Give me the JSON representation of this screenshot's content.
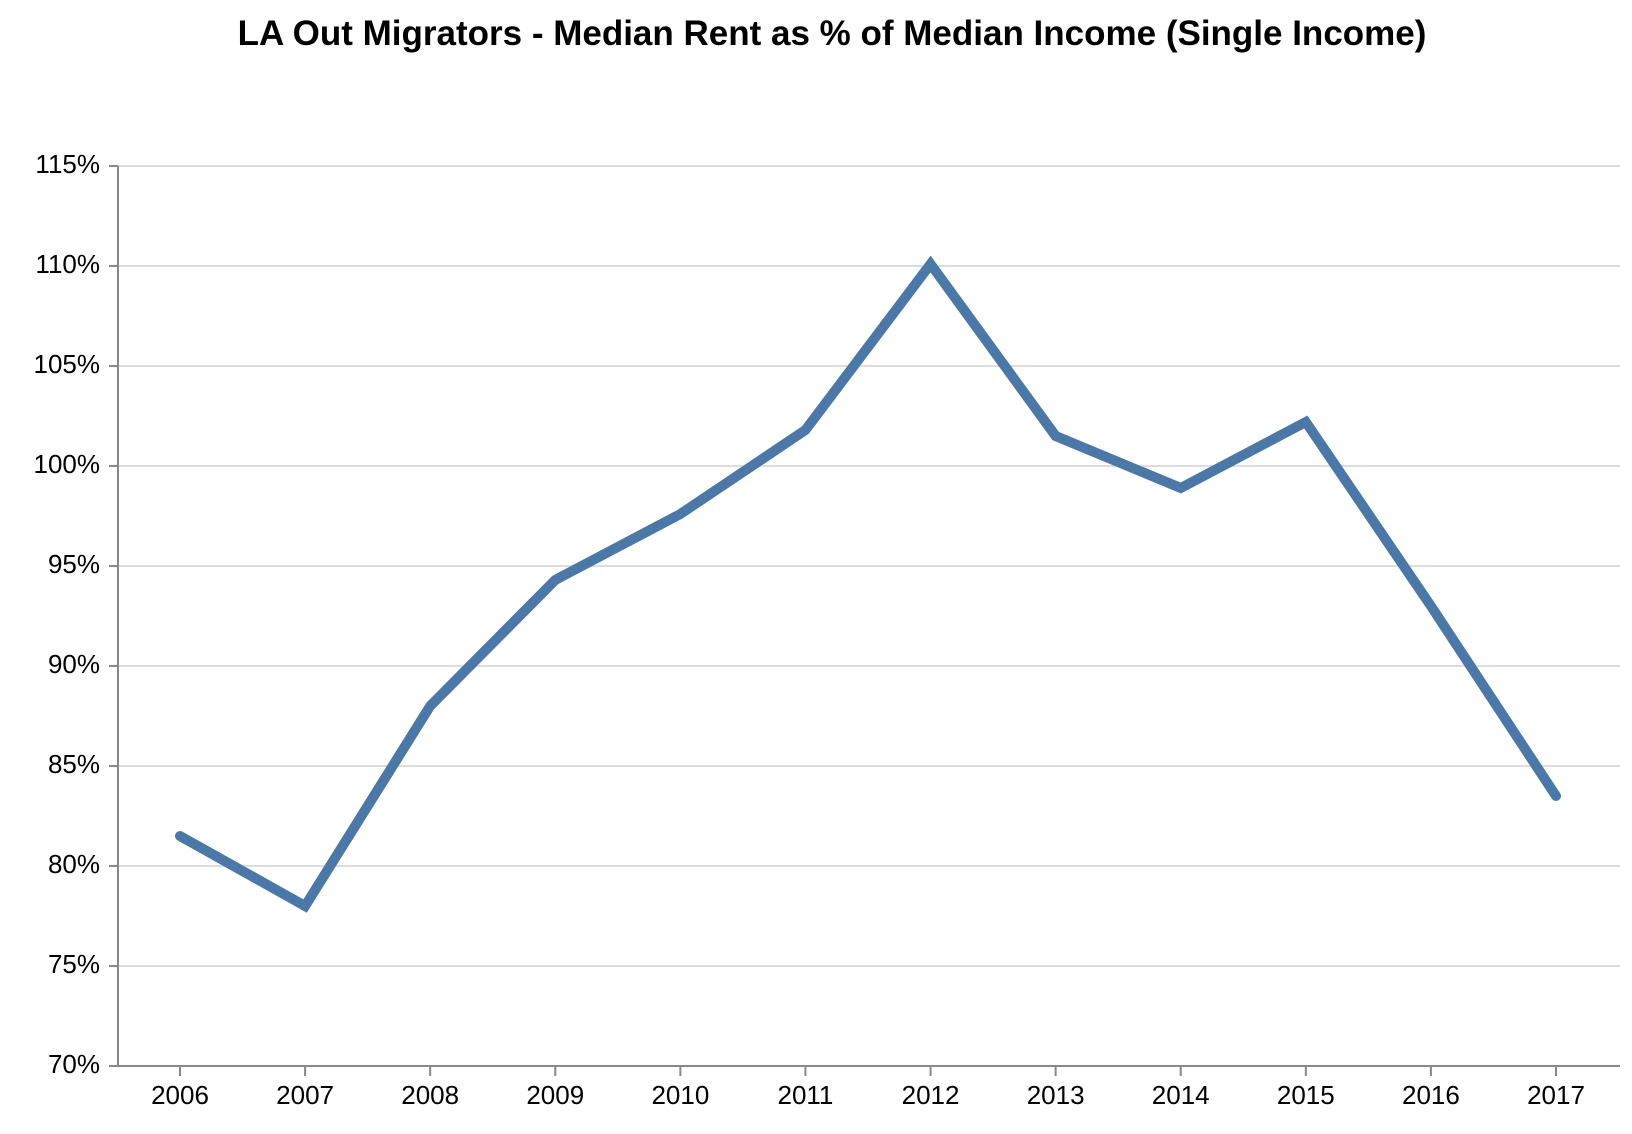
{
  "chart_data": {
    "type": "line",
    "title": "LA Out Migrators - Median Rent as % of Median Income (Single Income)",
    "xlabel": "",
    "ylabel": "",
    "x": [
      "2006",
      "2007",
      "2008",
      "2009",
      "2010",
      "2011",
      "2012",
      "2013",
      "2014",
      "2015",
      "2016",
      "2017"
    ],
    "series": [
      {
        "values": [
          81.5,
          78.0,
          88.0,
          94.3,
          97.6,
          101.8,
          110.1,
          101.5,
          98.9,
          102.2,
          93.0,
          83.5
        ]
      }
    ],
    "ylim": [
      70,
      115
    ],
    "y_ticks": [
      "70%",
      "75%",
      "80%",
      "85%",
      "90%",
      "95%",
      "100%",
      "105%",
      "110%",
      "115%"
    ],
    "grid": true,
    "line_color": "#4c78a8",
    "grid_color": "#dddddd",
    "axis_color": "#888888"
  }
}
